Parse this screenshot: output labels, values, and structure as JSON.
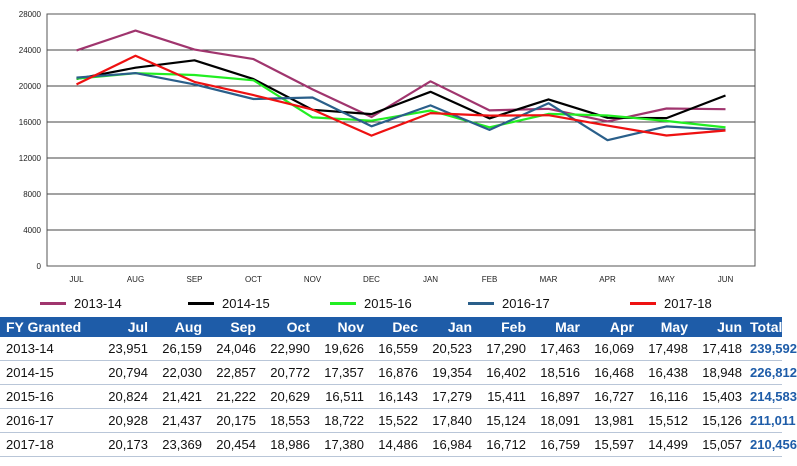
{
  "chart_data": {
    "type": "line",
    "categories": [
      "JUL",
      "AUG",
      "SEP",
      "OCT",
      "NOV",
      "DEC",
      "JAN",
      "FEB",
      "MAR",
      "APR",
      "MAY",
      "JUN"
    ],
    "ylim": [
      0,
      28000
    ],
    "yticks": [
      0,
      4000,
      8000,
      12000,
      16000,
      20000,
      24000,
      28000
    ],
    "grid": true,
    "legend_position": "bottom",
    "series": [
      {
        "name": "2013-14",
        "color": "#a0356e",
        "values": [
          23951,
          26159,
          24046,
          22990,
          19626,
          16559,
          20523,
          17290,
          17463,
          16069,
          17498,
          17418
        ]
      },
      {
        "name": "2014-15",
        "color": "#000000",
        "values": [
          20794,
          22030,
          22857,
          20772,
          17357,
          16876,
          19354,
          16402,
          18516,
          16468,
          16438,
          18948
        ]
      },
      {
        "name": "2015-16",
        "color": "#22ee22",
        "values": [
          20824,
          21421,
          21222,
          20629,
          16511,
          16143,
          17279,
          15411,
          16897,
          16727,
          16116,
          15403
        ]
      },
      {
        "name": "2016-17",
        "color": "#2a5f8a",
        "values": [
          20928,
          21437,
          20175,
          18553,
          18722,
          15522,
          17840,
          15124,
          18091,
          13981,
          15512,
          15126
        ]
      },
      {
        "name": "2017-18",
        "color": "#ee1111",
        "values": [
          20173,
          23369,
          20454,
          18986,
          17380,
          14486,
          16984,
          16712,
          16759,
          15597,
          14499,
          15057
        ]
      }
    ]
  },
  "table": {
    "headers": [
      "FY Granted",
      "Jul",
      "Aug",
      "Sep",
      "Oct",
      "Nov",
      "Dec",
      "Jan",
      "Feb",
      "Mar",
      "Apr",
      "May",
      "Jun",
      "Total"
    ],
    "rows": [
      [
        "2013-14",
        "23,951",
        "26,159",
        "24,046",
        "22,990",
        "19,626",
        "16,559",
        "20,523",
        "17,290",
        "17,463",
        "16,069",
        "17,498",
        "17,418",
        "239,592"
      ],
      [
        "2014-15",
        "20,794",
        "22,030",
        "22,857",
        "20,772",
        "17,357",
        "16,876",
        "19,354",
        "16,402",
        "18,516",
        "16,468",
        "16,438",
        "18,948",
        "226,812"
      ],
      [
        "2015-16",
        "20,824",
        "21,421",
        "21,222",
        "20,629",
        "16,511",
        "16,143",
        "17,279",
        "15,411",
        "16,897",
        "16,727",
        "16,116",
        "15,403",
        "214,583"
      ],
      [
        "2016-17",
        "20,928",
        "21,437",
        "20,175",
        "18,553",
        "18,722",
        "15,522",
        "17,840",
        "15,124",
        "18,091",
        "13,981",
        "15,512",
        "15,126",
        "211,011"
      ],
      [
        "2017-18",
        "20,173",
        "23,369",
        "20,454",
        "18,986",
        "17,380",
        "14,486",
        "16,984",
        "16,712",
        "16,759",
        "15,597",
        "14,499",
        "15,057",
        "210,456"
      ]
    ]
  }
}
